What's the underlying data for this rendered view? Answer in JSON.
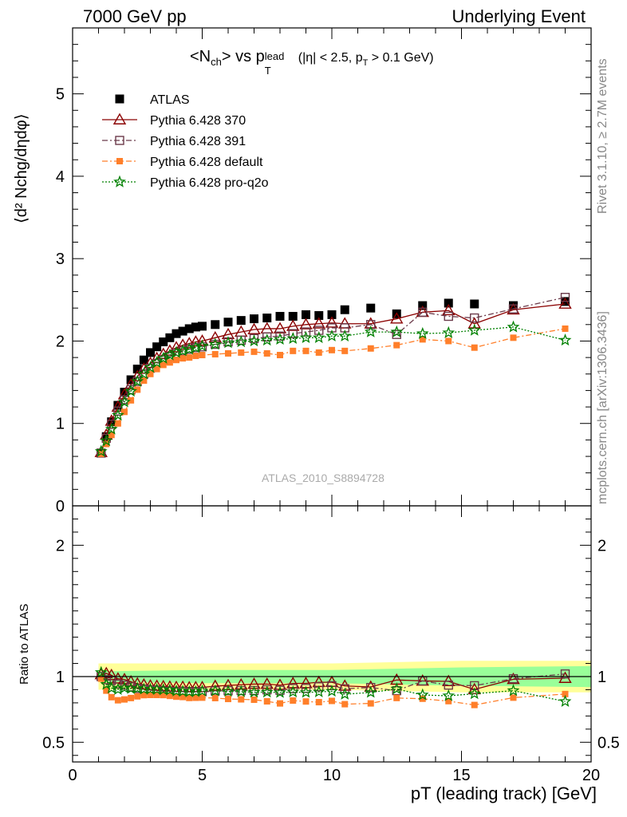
{
  "header": {
    "left": "7000 GeV pp",
    "right": "Underlying Event"
  },
  "side_labels": {
    "rivet": "Rivet 3.1.10, ≥ 2.7M events",
    "mcplots": "mcplots.cern.ch [arXiv:1306.3436]"
  },
  "watermark": "ATLAS_2010_S8894728",
  "colors": {
    "atlas": "#000000",
    "p370": "#8b0000",
    "p391": "#6b3a4a",
    "pdefault": "#ff7f2a",
    "pq2o": "#008000",
    "band_inner": "#99ff99",
    "band_outer": "#ffff99"
  },
  "chart_data": {
    "type": "line",
    "title": "<Nch> vs pT lead (|η| < 2.5, pT > 0.1 GeV)",
    "title_parts": {
      "a": "<N",
      "a_sub": "ch",
      "b": "> vs p",
      "b_sub": "T",
      "b_sup": "lead",
      "c": "(|η| < 2.5, p",
      "c_sub": "T",
      "d": " > 0.1 GeV)"
    },
    "ylabel_main": "⟨d² Nchg/dηdφ⟩",
    "ylabel_ratio": "Ratio to ATLAS",
    "xlabel": "pT (leading track) [GeV]",
    "xlim": [
      0,
      20
    ],
    "ylim_main": [
      0,
      5.8
    ],
    "ylim_ratio": [
      0.35,
      2.3
    ],
    "x_ticks": [
      0,
      5,
      10,
      15,
      20
    ],
    "y_ticks_main": [
      0,
      1,
      2,
      3,
      4,
      5
    ],
    "y_ticks_ratio": [
      0.5,
      1,
      2
    ],
    "legend": [
      {
        "label": "ATLAS",
        "series": "atlas"
      },
      {
        "label": "Pythia 6.428 370",
        "series": "p370"
      },
      {
        "label": "Pythia 6.428 391",
        "series": "p391"
      },
      {
        "label": "Pythia 6.428 default",
        "series": "pdefault"
      },
      {
        "label": "Pythia 6.428 pro-q2o",
        "series": "pq2o"
      }
    ],
    "x": [
      1.1,
      1.3,
      1.5,
      1.75,
      2.0,
      2.25,
      2.5,
      2.75,
      3.0,
      3.25,
      3.5,
      3.75,
      4.0,
      4.25,
      4.5,
      4.75,
      5.0,
      5.5,
      6.0,
      6.5,
      7.0,
      7.5,
      8.0,
      8.5,
      9.0,
      9.5,
      10.0,
      10.5,
      11.5,
      12.5,
      13.5,
      14.5,
      15.5,
      17.0,
      19.0
    ],
    "series": [
      {
        "name": "ATLAS",
        "key": "atlas",
        "marker": "square",
        "values": [
          0.64,
          0.84,
          1.02,
          1.22,
          1.38,
          1.53,
          1.66,
          1.77,
          1.86,
          1.93,
          1.99,
          2.04,
          2.09,
          2.12,
          2.15,
          2.17,
          2.18,
          2.2,
          2.23,
          2.25,
          2.27,
          2.28,
          2.3,
          2.3,
          2.32,
          2.31,
          2.32,
          2.38,
          2.4,
          2.33,
          2.43,
          2.46,
          2.45,
          2.43,
          2.48
        ]
      },
      {
        "name": "Pythia 6.428 370",
        "key": "p370",
        "marker": "triangle",
        "values": [
          0.65,
          0.86,
          1.03,
          1.2,
          1.35,
          1.47,
          1.57,
          1.66,
          1.73,
          1.79,
          1.84,
          1.88,
          1.92,
          1.95,
          1.97,
          1.99,
          2.0,
          2.04,
          2.08,
          2.11,
          2.14,
          2.15,
          2.15,
          2.18,
          2.2,
          2.21,
          2.22,
          2.21,
          2.21,
          2.27,
          2.35,
          2.37,
          2.21,
          2.38,
          2.45
        ]
      },
      {
        "name": "Pythia 6.428 391",
        "key": "p391",
        "marker": "opensquare",
        "values": [
          0.64,
          0.82,
          0.99,
          1.15,
          1.29,
          1.41,
          1.51,
          1.6,
          1.67,
          1.73,
          1.77,
          1.81,
          1.85,
          1.88,
          1.9,
          1.92,
          1.93,
          1.96,
          1.99,
          2.01,
          2.03,
          2.05,
          2.06,
          2.09,
          2.11,
          2.13,
          2.16,
          2.16,
          2.2,
          2.08,
          2.35,
          2.3,
          2.28,
          2.39,
          2.53
        ]
      },
      {
        "name": "Pythia 6.428 default",
        "key": "pdefault",
        "marker": "smallsquare",
        "values": [
          0.63,
          0.75,
          0.86,
          1.0,
          1.14,
          1.28,
          1.41,
          1.52,
          1.6,
          1.66,
          1.71,
          1.74,
          1.77,
          1.79,
          1.8,
          1.82,
          1.83,
          1.84,
          1.85,
          1.86,
          1.87,
          1.85,
          1.83,
          1.88,
          1.88,
          1.86,
          1.89,
          1.88,
          1.91,
          1.95,
          2.02,
          2.0,
          1.92,
          2.04,
          2.15
        ]
      },
      {
        "name": "Pythia 6.428 pro-q2o",
        "key": "pq2o",
        "marker": "star",
        "values": [
          0.66,
          0.79,
          0.93,
          1.1,
          1.26,
          1.39,
          1.51,
          1.6,
          1.68,
          1.74,
          1.79,
          1.83,
          1.86,
          1.88,
          1.9,
          1.92,
          1.94,
          1.96,
          1.98,
          1.99,
          2.0,
          2.01,
          2.02,
          2.03,
          2.04,
          2.04,
          2.06,
          2.06,
          2.11,
          2.11,
          2.09,
          2.1,
          2.13,
          2.17,
          2.01
        ]
      }
    ],
    "ratio_band_inner": {
      "x": [
        1,
        5,
        10,
        15,
        20
      ],
      "low": [
        0.96,
        0.95,
        0.95,
        0.93,
        0.92
      ],
      "high": [
        1.04,
        1.05,
        1.05,
        1.07,
        1.08
      ]
    },
    "ratio_band_outer": {
      "x": [
        1,
        5,
        10,
        15,
        20
      ],
      "low": [
        0.9,
        0.9,
        0.9,
        0.88,
        0.88
      ],
      "high": [
        1.1,
        1.1,
        1.1,
        1.12,
        1.12
      ]
    }
  }
}
